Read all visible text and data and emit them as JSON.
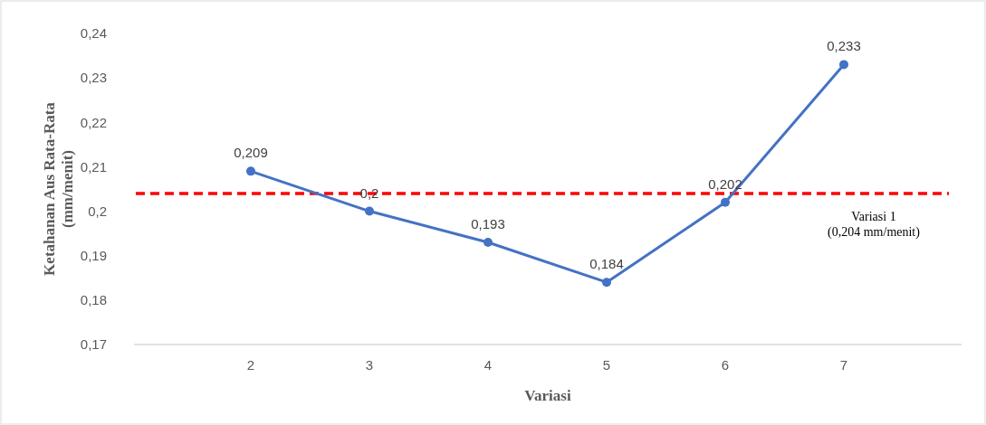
{
  "chart_data": {
    "type": "line",
    "categories": [
      "2",
      "3",
      "4",
      "5",
      "6",
      "7"
    ],
    "series": [
      {
        "color": "#4472c4",
        "values": [
          0.209,
          0.2,
          0.193,
          0.184,
          0.202,
          0.233
        ],
        "value_labels": [
          "0,209",
          "0,2",
          "0,193",
          "0,184",
          "0,202",
          "0,233"
        ]
      }
    ],
    "ylim": [
      0.17,
      0.24
    ],
    "yticks": [
      {
        "value": 0.17,
        "label": "0,17"
      },
      {
        "value": 0.18,
        "label": "0,18"
      },
      {
        "value": 0.19,
        "label": "0,19"
      },
      {
        "value": 0.2,
        "label": "0,2"
      },
      {
        "value": 0.21,
        "label": "0,21"
      },
      {
        "value": 0.22,
        "label": "0,22"
      },
      {
        "value": 0.23,
        "label": "0,23"
      },
      {
        "value": 0.24,
        "label": "0,24"
      }
    ],
    "xlabel": "Variasi",
    "ylabel": "Ketahanan Aus Rata-Rata\n(mm/menit)",
    "ref_lines": [
      {
        "axis": "y",
        "value": 0.204,
        "label": "Variasi 1\n(0,204 mm/menit)",
        "color": "#ff0000",
        "line_style": "dashed"
      }
    ],
    "marker": "circle",
    "line_style": "solid",
    "grid": false
  }
}
